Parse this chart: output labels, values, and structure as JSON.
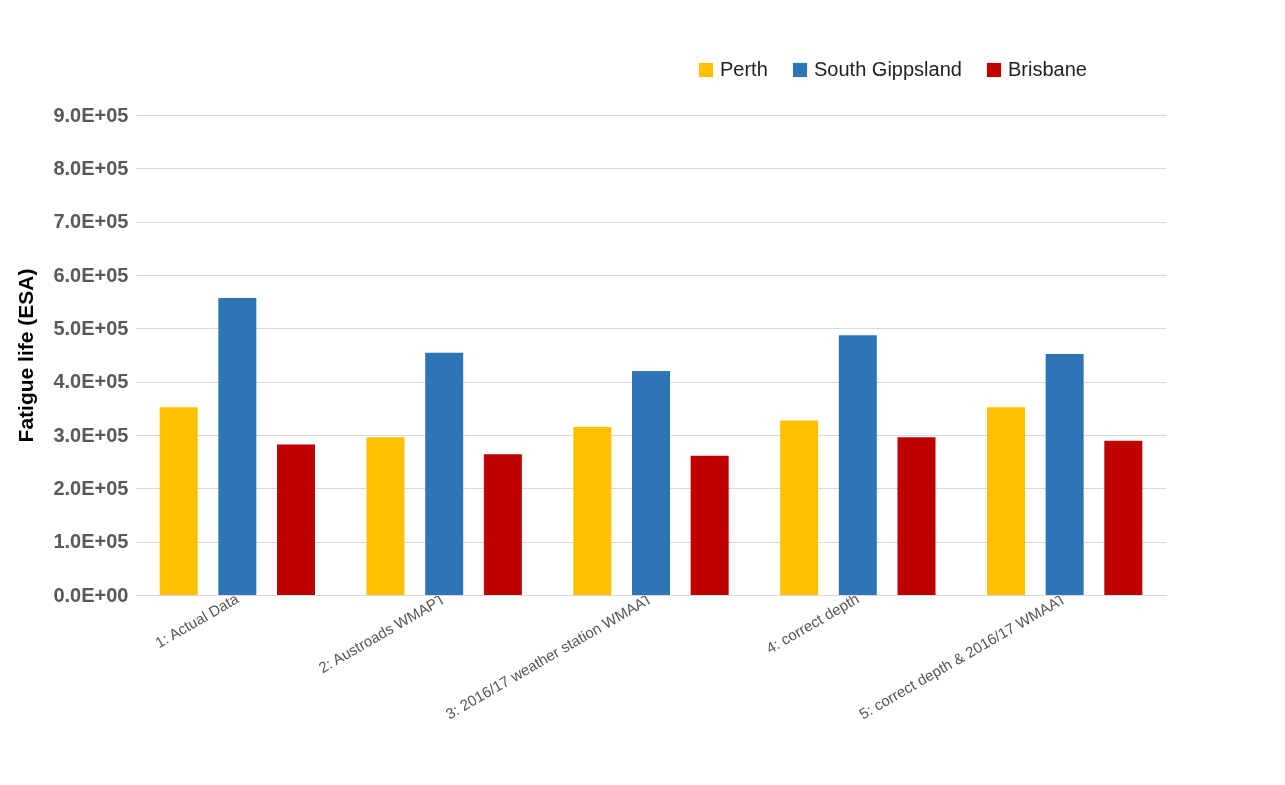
{
  "chart_data": {
    "type": "bar",
    "ylabel": "Fatigue life (ESA)",
    "categories": [
      "1: Actual Data",
      "2: Austroads WMAPT",
      "3: 2016/17 weather station WMAAT",
      "4: correct depth",
      "5: correct depth & 2016/17 WMAAT"
    ],
    "series": [
      {
        "name": "Perth",
        "color": "#ffc000",
        "values": [
          352000,
          296000,
          315000,
          327000,
          352000
        ]
      },
      {
        "name": "South Gippsland",
        "color": "#2e75b6",
        "values": [
          557000,
          454000,
          420000,
          487000,
          452000
        ]
      },
      {
        "name": "Brisbane",
        "color": "#c00000",
        "values": [
          282000,
          264000,
          261000,
          296000,
          289000
        ]
      }
    ],
    "ylim": [
      0,
      900000
    ],
    "yticks": [
      {
        "value": 0,
        "label": "0.0E+00"
      },
      {
        "value": 100000,
        "label": "1.0E+05"
      },
      {
        "value": 200000,
        "label": "2.0E+05"
      },
      {
        "value": 300000,
        "label": "3.0E+05"
      },
      {
        "value": 400000,
        "label": "4.0E+05"
      },
      {
        "value": 500000,
        "label": "5.0E+05"
      },
      {
        "value": 600000,
        "label": "6.0E+05"
      },
      {
        "value": 700000,
        "label": "7.0E+05"
      },
      {
        "value": 800000,
        "label": "8.0E+05"
      },
      {
        "value": 900000,
        "label": "9.0E+05"
      }
    ],
    "grid": "y",
    "legend": "top right"
  }
}
